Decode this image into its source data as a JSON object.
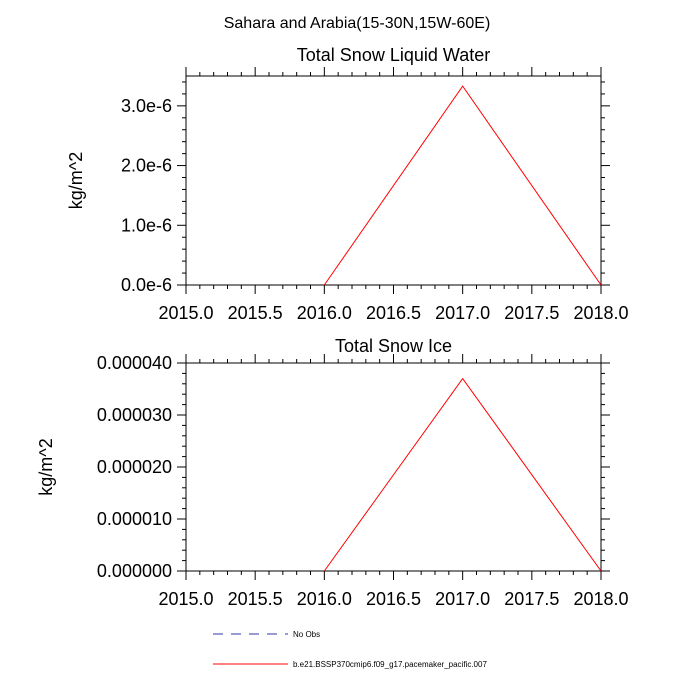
{
  "suptitle": "Sahara and Arabia(15-30N,15W-60E)",
  "chart_data": [
    {
      "type": "line",
      "title": "Total Snow Liquid Water",
      "xlabel": "",
      "ylabel": "kg/m^2",
      "xlim": [
        2015.0,
        2018.0
      ],
      "ylim": [
        0,
        3.5e-06
      ],
      "xticks": [
        2015.0,
        2015.5,
        2016.0,
        2016.5,
        2017.0,
        2017.5,
        2018.0
      ],
      "xtick_labels": [
        "2015.0",
        "2015.5",
        "2016.0",
        "2016.5",
        "2017.0",
        "2017.5",
        "2018.0"
      ],
      "yticks": [
        0,
        1e-06,
        2e-06,
        3e-06
      ],
      "ytick_labels": [
        "0.0e-6",
        "1.0e-6",
        "2.0e-6",
        "3.0e-6"
      ],
      "grid": false,
      "series": [
        {
          "name": "b.e21.BSSP370cmip6.f09_g17.pacemaker_pacific.007",
          "color": "#ff0000",
          "x": [
            2016.0,
            2017.0,
            2018.0
          ],
          "y": [
            0,
            3.33e-06,
            0
          ]
        }
      ]
    },
    {
      "type": "line",
      "title": "Total Snow Ice",
      "xlabel": "",
      "ylabel": "kg/m^2",
      "xlim": [
        2015.0,
        2018.0
      ],
      "ylim": [
        0,
        4e-05
      ],
      "xticks": [
        2015.0,
        2015.5,
        2016.0,
        2016.5,
        2017.0,
        2017.5,
        2018.0
      ],
      "xtick_labels": [
        "2015.0",
        "2015.5",
        "2016.0",
        "2016.5",
        "2017.0",
        "2017.5",
        "2018.0"
      ],
      "yticks": [
        0,
        1e-05,
        2e-05,
        3e-05,
        4e-05
      ],
      "ytick_labels": [
        "0.000000",
        "0.000010",
        "0.000020",
        "0.000030",
        "0.000040"
      ],
      "grid": false,
      "series": [
        {
          "name": "b.e21.BSSP370cmip6.f09_g17.pacemaker_pacific.007",
          "color": "#ff0000",
          "x": [
            2016.0,
            2017.0,
            2018.0
          ],
          "y": [
            0,
            3.7e-05,
            0
          ]
        }
      ]
    }
  ],
  "legend": {
    "placement": "bottom",
    "items": [
      {
        "label": "No Obs",
        "color": "#3333aa",
        "style": "dashed"
      },
      {
        "label": "b.e21.BSSP370cmip6.f09_g17.pacemaker_pacific.007",
        "color": "#ff0000",
        "style": "solid"
      }
    ]
  }
}
